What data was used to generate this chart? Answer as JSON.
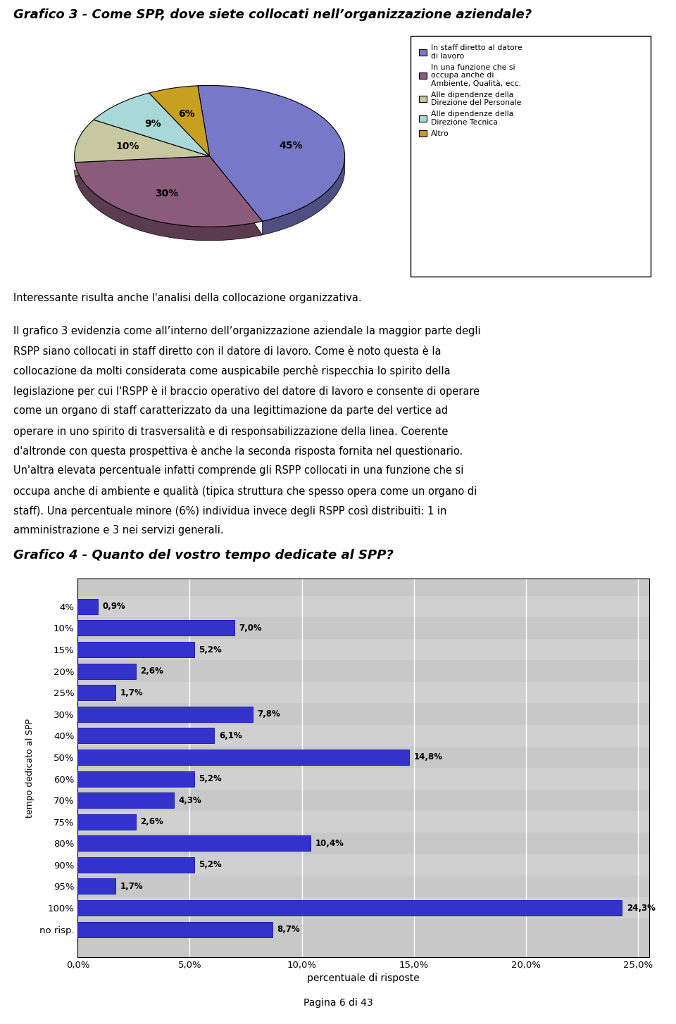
{
  "title1": "Grafico 3 - Come SPP, dove siete collocati nell’organizzazione aziendale?",
  "pie_values": [
    45,
    30,
    10,
    9,
    6
  ],
  "pie_labels": [
    "45%",
    "30%",
    "10%",
    "9%",
    "6%"
  ],
  "pie_colors": [
    "#7878C8",
    "#8B5B7B",
    "#C8C8A0",
    "#A8D8D8",
    "#C8A020"
  ],
  "legend_labels": [
    "In staff diretto al datore\ndi lavoro",
    "In una funzione che si\noccupa anche di\nAmbiente, Qualità, ecc.",
    "Alle dipendenze della\nDirezione del Personale",
    "Alle dipendenze della\nDirezione Tecnica",
    "Altro"
  ],
  "legend_colors": [
    "#7878C8",
    "#8B5B7B",
    "#C8C8A0",
    "#A8D8D8",
    "#C8A020"
  ],
  "text_paragraph1": "Interessante risulta anche l'analisi della collocazione organizzativa.",
  "text_paragraph2": "Il grafico 3 evidenzia come all’interno dell’organizzazione aziendale la maggior parte degli RSPP siano collocati in staff diretto con il datore di lavoro. Come è noto questa è la collocazione da molti considerata come auspicabile perchè rispecchia lo spirito della legislazione per cui l'RSPP è il braccio operativo del datore di lavoro e consente di operare come un organo di staff caratterizzato da una legittimazione da parte del vertice ad operare in uno spirito di trasversalità e di responsabilizzazione della linea. Coerente d'altronde con questa prospettiva è anche la seconda risposta fornita nel questionario. Un'altra elevata percentuale infatti comprende gli RSPP collocati in una funzione che si occupa anche di ambiente e qualità (tipica struttura che spesso opera come un organo di staff). Una percentuale minore (6%) individua invece degli RSPP così distribuiti: 1 in amministrazione e 3 nei servizi generali.",
  "title2": "Grafico 4 - Quanto del vostro tempo dedicate al SPP?",
  "bar_categories": [
    "4%",
    "10%",
    "15%",
    "20%",
    "25%",
    "30%",
    "40%",
    "50%",
    "60%",
    "70%",
    "75%",
    "80%",
    "90%",
    "95%",
    "100%",
    "no risp."
  ],
  "bar_values": [
    0.9,
    7.0,
    5.2,
    2.6,
    1.7,
    7.8,
    6.1,
    14.8,
    5.2,
    4.3,
    2.6,
    10.4,
    5.2,
    1.7,
    24.3,
    8.7
  ],
  "bar_color_main": "#3333CC",
  "bar_color_edge": "#1111AA",
  "bar_bg_color": "#C8C8C8",
  "xlabel2": "percentuale di risposte",
  "ylabel2": "tempo dedicato al SPP",
  "xlim2": [
    0,
    25.5
  ],
  "xticks2": [
    0.0,
    5.0,
    10.0,
    15.0,
    20.0,
    25.0
  ],
  "xtick_labels2": [
    "0,0%",
    "5,0%",
    "10,0%",
    "15,0%",
    "20,0%",
    "25,0%"
  ],
  "footer": "Pagina 6 di 43",
  "bg_color": "#FFFFFF"
}
